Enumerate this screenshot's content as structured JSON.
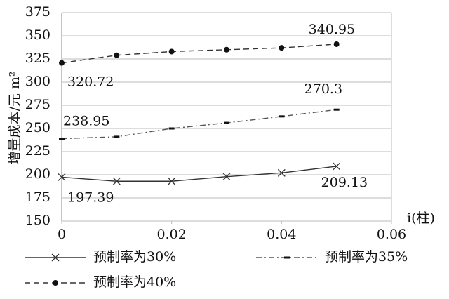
{
  "chart_data": {
    "type": "line",
    "y_label": "增量成本/元 m²",
    "x_label": "i(柱)",
    "x": [
      0,
      0.01,
      0.02,
      0.03,
      0.04,
      0.05
    ],
    "series": [
      {
        "name": "预制率为30%",
        "color": "#333333",
        "dash": "solid",
        "marker": "x",
        "values": [
          197.39,
          193,
          193,
          198,
          202,
          209.13
        ]
      },
      {
        "name": "预制率为35%",
        "color": "#555555",
        "dash": "dashdot",
        "marker": "dash",
        "values": [
          238.95,
          241,
          250,
          256,
          263,
          270.3
        ]
      },
      {
        "name": "预制率为40%",
        "color": "#333333",
        "dash": "dashed",
        "marker": "circle",
        "values": [
          320.72,
          329,
          333,
          335,
          337,
          340.95
        ]
      }
    ],
    "xlim": [
      0,
      0.06
    ],
    "xticks": [
      0,
      0.02,
      0.04,
      0.06
    ],
    "ylim": [
      150,
      375
    ],
    "yticks": [
      150,
      175,
      200,
      225,
      250,
      275,
      300,
      325,
      350,
      375
    ],
    "grid": true
  }
}
